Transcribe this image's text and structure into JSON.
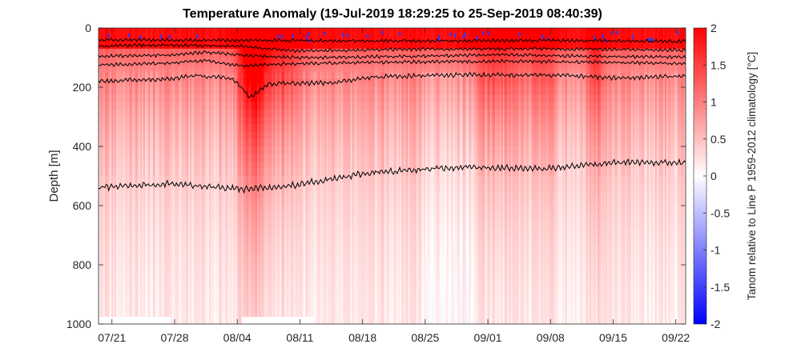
{
  "chart_data": {
    "type": "heatmap",
    "title": "Temperature Anomaly (19-Jul-2019 18:29:25 to 25-Sep-2019 08:40:39)",
    "xlabel": "",
    "ylabel": "Depth [m]",
    "x_tick_labels": [
      "07/21",
      "07/28",
      "08/04",
      "08/11",
      "08/18",
      "08/25",
      "09/01",
      "09/08",
      "09/15",
      "09/22"
    ],
    "x_tick_days": [
      1.5,
      8.5,
      15.5,
      22.5,
      29.5,
      36.5,
      43.5,
      50.5,
      57.5,
      64.5
    ],
    "x_range_days": [
      0,
      65.6
    ],
    "y_ticks": [
      0,
      200,
      400,
      600,
      800,
      1000
    ],
    "ylim": [
      0,
      1000
    ],
    "y_reversed": true,
    "colorbar": {
      "label": "Tanom relative to Line P 1959-2012 climatology [°C]",
      "ticks": [
        2,
        1.5,
        1,
        0.5,
        0,
        -0.5,
        -1,
        -1.5,
        -2
      ],
      "range": [
        -2,
        2
      ],
      "colormap": "blue-white-red",
      "low_color": "#0000ff",
      "mid_color": "#ffffff",
      "high_color": "#ff0000"
    },
    "contours": [
      {
        "base": [
          [
            0,
            40
          ],
          [
            16,
            42
          ],
          [
            34,
            44
          ],
          [
            50,
            42
          ],
          [
            65.6,
            45
          ]
        ]
      },
      {
        "base": [
          [
            0,
            60
          ],
          [
            10,
            58
          ],
          [
            16,
            62
          ],
          [
            22,
            78
          ],
          [
            34,
            72
          ],
          [
            50,
            70
          ],
          [
            65.6,
            75
          ]
        ]
      },
      {
        "base": [
          [
            0,
            95
          ],
          [
            8,
            92
          ],
          [
            12,
            82
          ],
          [
            16,
            92
          ],
          [
            22,
            100
          ],
          [
            34,
            96
          ],
          [
            45,
            90
          ],
          [
            55,
            96
          ],
          [
            65.6,
            98
          ]
        ]
      },
      {
        "base": [
          [
            0,
            125
          ],
          [
            8,
            118
          ],
          [
            12,
            110
          ],
          [
            16,
            128
          ],
          [
            22,
            120
          ],
          [
            34,
            115
          ],
          [
            45,
            112
          ],
          [
            56,
            116
          ],
          [
            65.6,
            120
          ]
        ]
      },
      {
        "base": [
          [
            0,
            180
          ],
          [
            8,
            172
          ],
          [
            11,
            160
          ],
          [
            15,
            172
          ],
          [
            17,
            235
          ],
          [
            19,
            188
          ],
          [
            26,
            185
          ],
          [
            31,
            165
          ],
          [
            40,
            158
          ],
          [
            52,
            160
          ],
          [
            58,
            170
          ],
          [
            65.6,
            162
          ]
        ]
      },
      {
        "base": [
          [
            0,
            540
          ],
          [
            8,
            525
          ],
          [
            16,
            545
          ],
          [
            22,
            530
          ],
          [
            30,
            490
          ],
          [
            40,
            470
          ],
          [
            50,
            475
          ],
          [
            58,
            455
          ],
          [
            65.6,
            455
          ]
        ]
      }
    ]
  }
}
